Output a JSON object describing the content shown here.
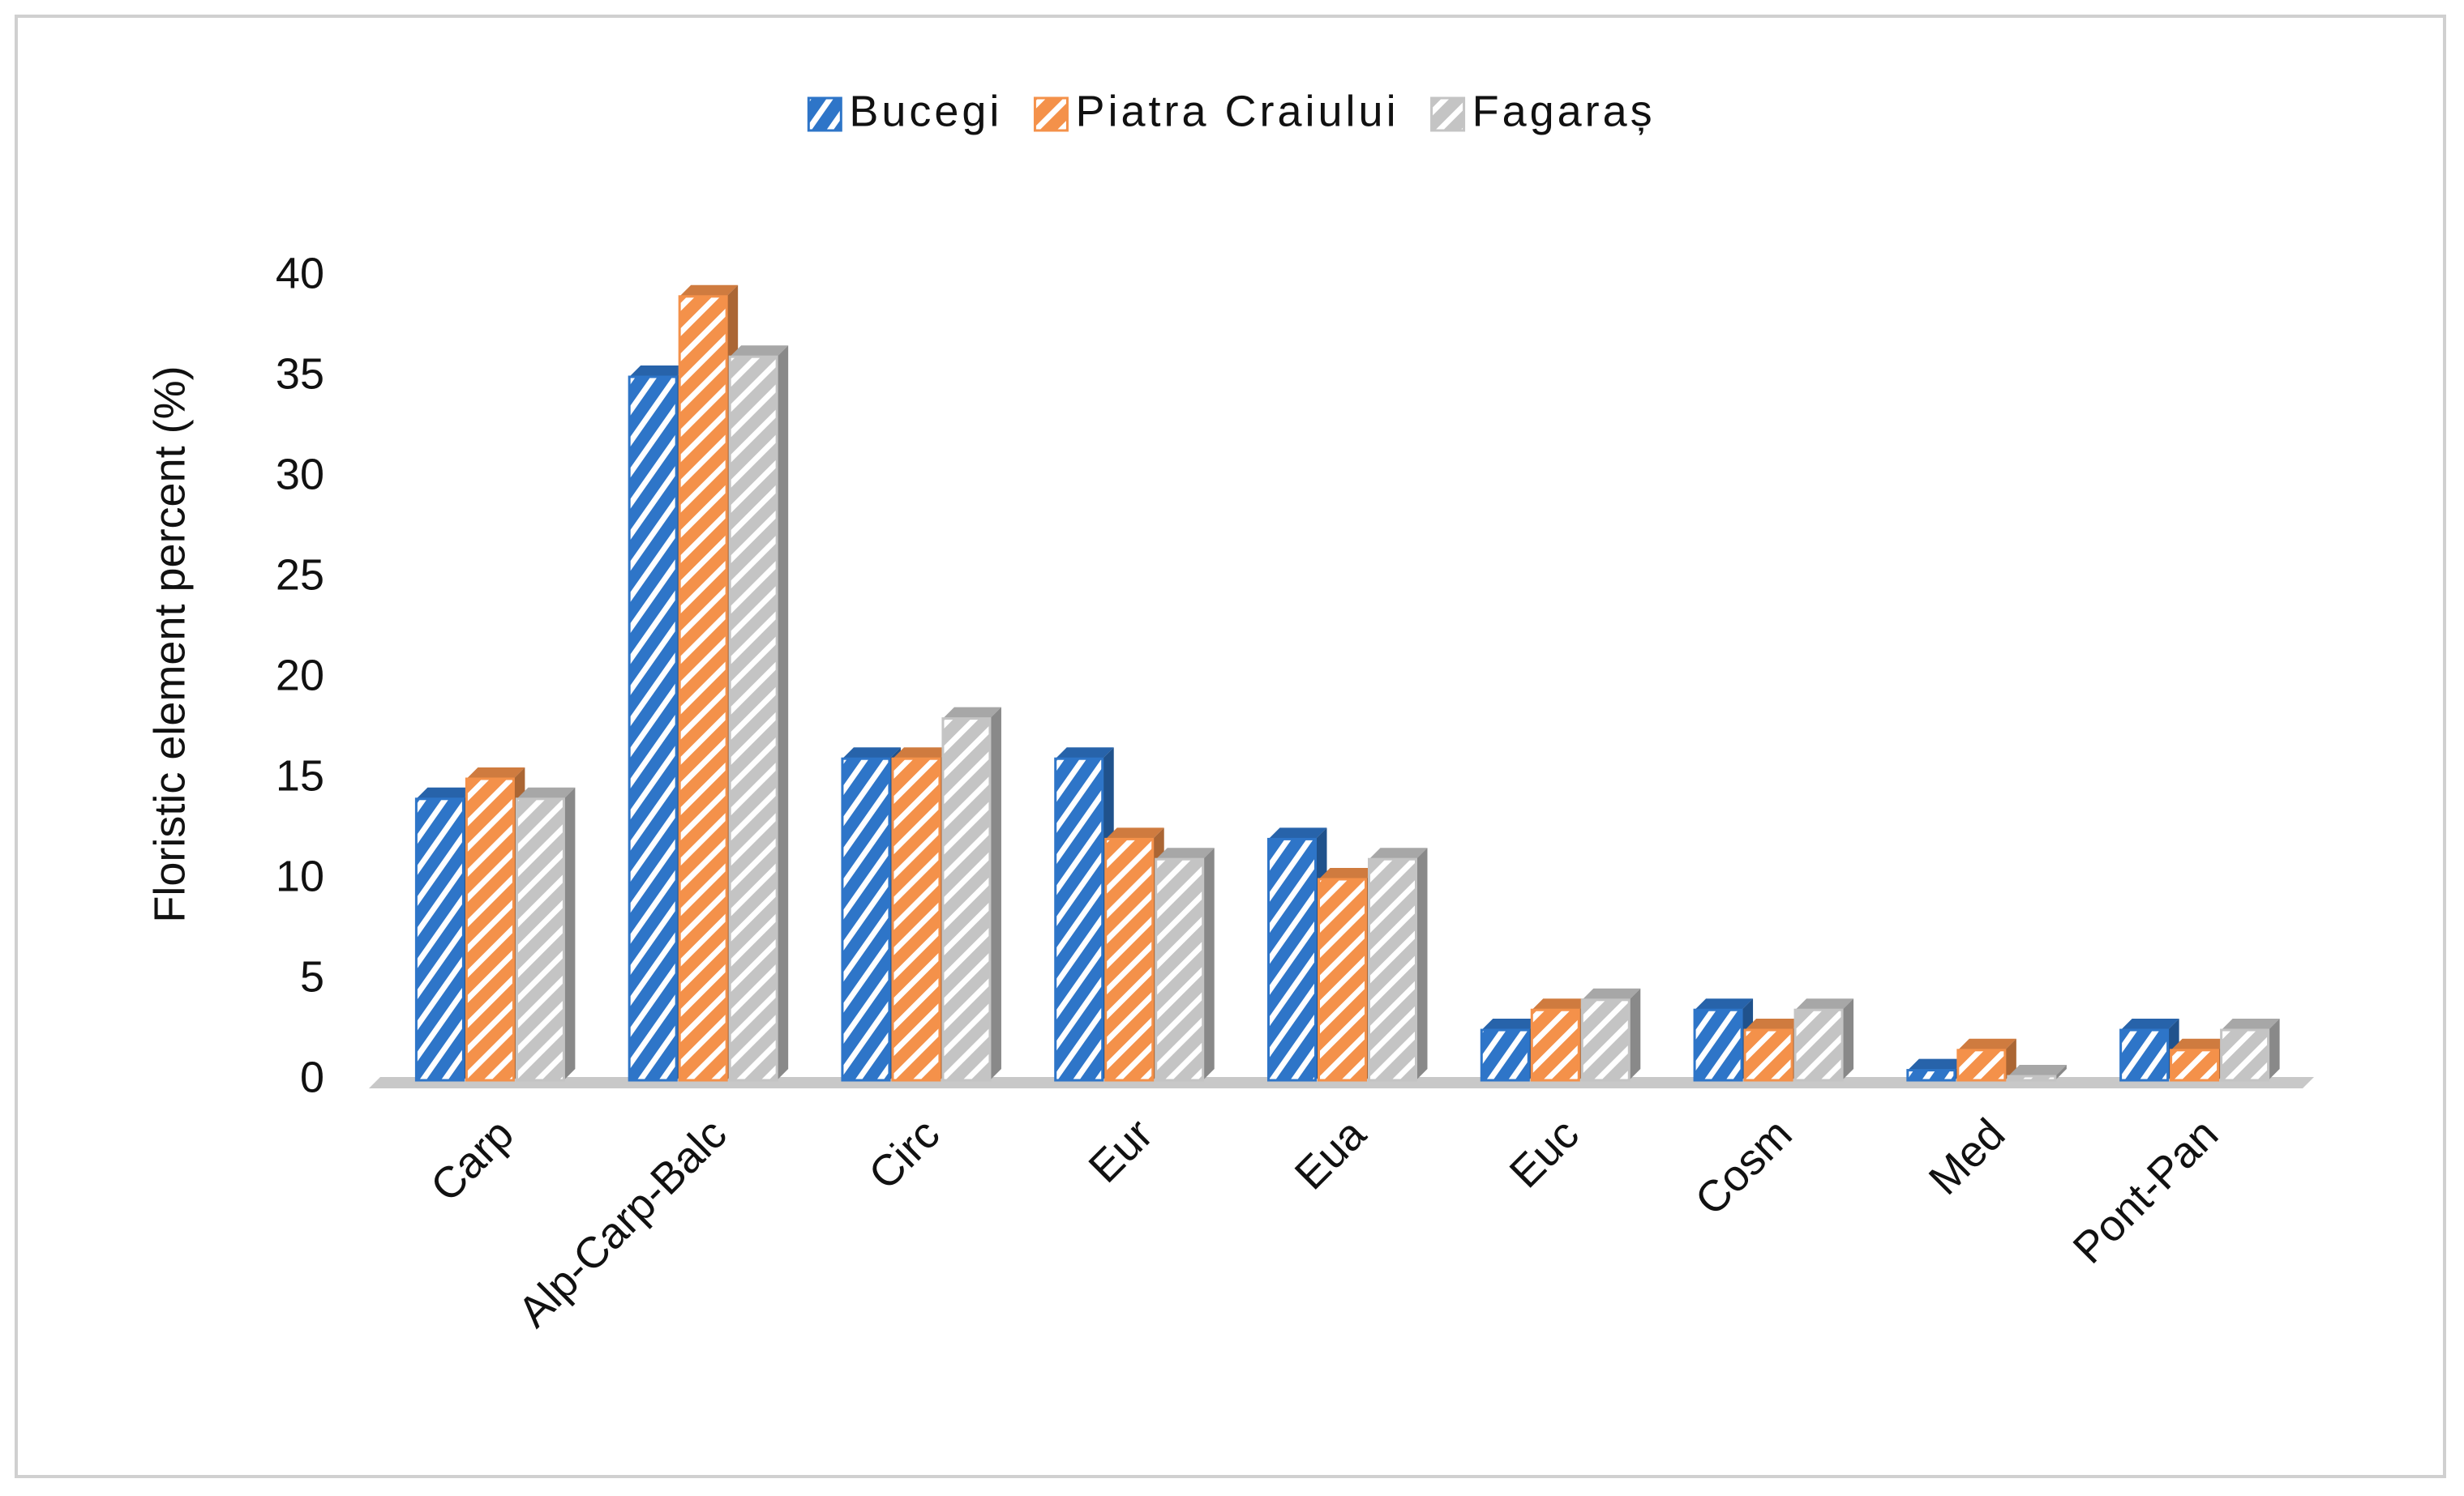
{
  "chart_data": {
    "type": "bar",
    "y_label": "Floristic element percent (%)",
    "categories": [
      "Carp",
      "Alp-Carp-Balc",
      "Circ",
      "Eur",
      "Eua",
      "Euc",
      "Cosm",
      "Med",
      "Pont-Pan"
    ],
    "series": [
      {
        "name": "Bucegi",
        "color": "#2e75c8",
        "values": [
          14,
          35,
          16,
          16,
          12,
          2.5,
          3.5,
          0.5,
          2.5
        ]
      },
      {
        "name": "Piatra Craiului",
        "color": "#f4914a",
        "values": [
          15,
          39,
          16,
          12,
          10,
          3.5,
          2.5,
          1.5,
          1.5
        ]
      },
      {
        "name": "Fagaraș",
        "color": "#c4c4c4",
        "values": [
          14,
          36,
          18,
          11,
          11,
          4,
          3.5,
          0.2,
          2.5
        ]
      }
    ],
    "ylim": [
      0,
      40
    ],
    "yticks": [
      0,
      5,
      10,
      15,
      20,
      25,
      30,
      35,
      40
    ],
    "legend": "top"
  }
}
